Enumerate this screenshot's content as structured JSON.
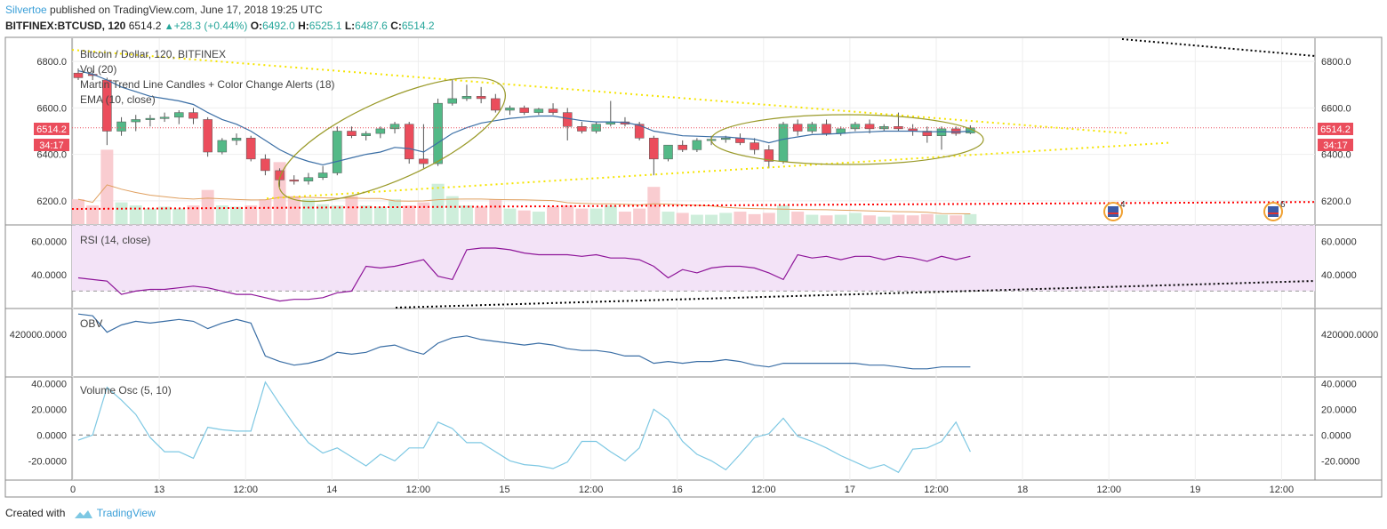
{
  "header": {
    "user": "Silvertoe",
    "published_text": " published on TradingView.com, June 17, 2018 19:25 UTC",
    "symbol": "BITFINEX:BTCUSD, 120",
    "last": "6514.2",
    "change": "+28.3 (+0.44%)",
    "o_label": "O:",
    "o": "6492.0",
    "h_label": "H:",
    "h": "6525.1",
    "l_label": "L:",
    "l": "6487.6",
    "c_label": "C:",
    "c": "6514.2"
  },
  "footer": {
    "created_with": "Created with",
    "brand": "TradingView"
  },
  "price_tag": {
    "price": "6514.2",
    "countdown": "34:17"
  },
  "legends": {
    "main_title": "Bitcoin / Dollar, 120, BITFINEX",
    "vol": "Vol (20)",
    "martin": "Martin Trend Line Candles + Color Change Alerts (18)",
    "ema": "EMA (10, close)",
    "rsi": "RSI (14, close)",
    "obv": "OBV",
    "vosc": "Volume Osc (5, 10)"
  },
  "events": [
    {
      "icon": "us-flag-event-icon",
      "count": "4",
      "x_index": 51
    },
    {
      "icon": "us-flag-event-icon",
      "count": "6",
      "x_index": 68
    }
  ],
  "colors": {
    "up": "#53b987",
    "down": "#eb4d5c",
    "ema": "#3a6ea5",
    "rsi": "#8e1599",
    "obv": "#3a6ea5",
    "vosc": "#7ec8e3",
    "trend_yellow": "#f5e400",
    "ellipse": "#9a9a2a",
    "dotted_red": "#ff0000"
  },
  "chart_data": [
    {
      "type": "candlestick",
      "title": "Bitcoin / Dollar, 120, BITFINEX",
      "x_labels": [
        "0",
        "13",
        "12:00",
        "14",
        "12:00",
        "15",
        "12:00",
        "16",
        "12:00",
        "17",
        "12:00",
        "18",
        "12:00",
        "19",
        "12:00"
      ],
      "ylim": [
        6100,
        6900
      ],
      "y_ticks": [
        "6200.0",
        "6400.0",
        "6600.0",
        "6800.0"
      ],
      "candles": [
        {
          "o": 6750,
          "h": 6770,
          "l": 6720,
          "c": 6730
        },
        {
          "o": 6745,
          "h": 6760,
          "l": 6720,
          "c": 6740
        },
        {
          "o": 6720,
          "h": 6730,
          "l": 6440,
          "c": 6500
        },
        {
          "o": 6500,
          "h": 6560,
          "l": 6480,
          "c": 6540
        },
        {
          "o": 6540,
          "h": 6570,
          "l": 6500,
          "c": 6550
        },
        {
          "o": 6550,
          "h": 6570,
          "l": 6520,
          "c": 6555
        },
        {
          "o": 6555,
          "h": 6580,
          "l": 6540,
          "c": 6560
        },
        {
          "o": 6560,
          "h": 6590,
          "l": 6530,
          "c": 6580
        },
        {
          "o": 6580,
          "h": 6600,
          "l": 6530,
          "c": 6555
        },
        {
          "o": 6550,
          "h": 6560,
          "l": 6390,
          "c": 6410
        },
        {
          "o": 6410,
          "h": 6470,
          "l": 6400,
          "c": 6460
        },
        {
          "o": 6460,
          "h": 6490,
          "l": 6440,
          "c": 6470
        },
        {
          "o": 6470,
          "h": 6480,
          "l": 6370,
          "c": 6380
        },
        {
          "o": 6380,
          "h": 6400,
          "l": 6310,
          "c": 6330
        },
        {
          "o": 6330,
          "h": 6340,
          "l": 6260,
          "c": 6290
        },
        {
          "o": 6290,
          "h": 6310,
          "l": 6270,
          "c": 6285
        },
        {
          "o": 6285,
          "h": 6320,
          "l": 6270,
          "c": 6300
        },
        {
          "o": 6300,
          "h": 6350,
          "l": 6290,
          "c": 6320
        },
        {
          "o": 6320,
          "h": 6520,
          "l": 6310,
          "c": 6500
        },
        {
          "o": 6500,
          "h": 6520,
          "l": 6470,
          "c": 6480
        },
        {
          "o": 6480,
          "h": 6500,
          "l": 6460,
          "c": 6490
        },
        {
          "o": 6490,
          "h": 6520,
          "l": 6470,
          "c": 6510
        },
        {
          "o": 6510,
          "h": 6540,
          "l": 6490,
          "c": 6530
        },
        {
          "o": 6530,
          "h": 6540,
          "l": 6360,
          "c": 6380
        },
        {
          "o": 6380,
          "h": 6530,
          "l": 6340,
          "c": 6360
        },
        {
          "o": 6360,
          "h": 6640,
          "l": 6350,
          "c": 6620
        },
        {
          "o": 6620,
          "h": 6720,
          "l": 6610,
          "c": 6640
        },
        {
          "o": 6640,
          "h": 6700,
          "l": 6630,
          "c": 6650
        },
        {
          "o": 6650,
          "h": 6690,
          "l": 6620,
          "c": 6640
        },
        {
          "o": 6640,
          "h": 6660,
          "l": 6580,
          "c": 6590
        },
        {
          "o": 6590,
          "h": 6610,
          "l": 6570,
          "c": 6600
        },
        {
          "o": 6600,
          "h": 6610,
          "l": 6570,
          "c": 6580
        },
        {
          "o": 6580,
          "h": 6600,
          "l": 6570,
          "c": 6595
        },
        {
          "o": 6595,
          "h": 6620,
          "l": 6570,
          "c": 6580
        },
        {
          "o": 6580,
          "h": 6600,
          "l": 6460,
          "c": 6520
        },
        {
          "o": 6520,
          "h": 6540,
          "l": 6490,
          "c": 6500
        },
        {
          "o": 6500,
          "h": 6540,
          "l": 6490,
          "c": 6530
        },
        {
          "o": 6530,
          "h": 6630,
          "l": 6520,
          "c": 6540
        },
        {
          "o": 6540,
          "h": 6560,
          "l": 6520,
          "c": 6530
        },
        {
          "o": 6530,
          "h": 6540,
          "l": 6460,
          "c": 6470
        },
        {
          "o": 6470,
          "h": 6480,
          "l": 6310,
          "c": 6380
        },
        {
          "o": 6380,
          "h": 6440,
          "l": 6370,
          "c": 6440
        },
        {
          "o": 6440,
          "h": 6460,
          "l": 6410,
          "c": 6420
        },
        {
          "o": 6420,
          "h": 6470,
          "l": 6410,
          "c": 6460
        },
        {
          "o": 6460,
          "h": 6480,
          "l": 6440,
          "c": 6465
        },
        {
          "o": 6465,
          "h": 6480,
          "l": 6450,
          "c": 6470
        },
        {
          "o": 6470,
          "h": 6490,
          "l": 6440,
          "c": 6450
        },
        {
          "o": 6450,
          "h": 6470,
          "l": 6400,
          "c": 6420
        },
        {
          "o": 6420,
          "h": 6440,
          "l": 6340,
          "c": 6370
        },
        {
          "o": 6370,
          "h": 6540,
          "l": 6360,
          "c": 6530
        },
        {
          "o": 6530,
          "h": 6550,
          "l": 6480,
          "c": 6500
        },
        {
          "o": 6500,
          "h": 6540,
          "l": 6490,
          "c": 6530
        },
        {
          "o": 6530,
          "h": 6550,
          "l": 6480,
          "c": 6490
        },
        {
          "o": 6490,
          "h": 6520,
          "l": 6480,
          "c": 6510
        },
        {
          "o": 6510,
          "h": 6540,
          "l": 6500,
          "c": 6530
        },
        {
          "o": 6530,
          "h": 6550,
          "l": 6490,
          "c": 6510
        },
        {
          "o": 6510,
          "h": 6530,
          "l": 6500,
          "c": 6520
        },
        {
          "o": 6520,
          "h": 6580,
          "l": 6500,
          "c": 6510
        },
        {
          "o": 6510,
          "h": 6530,
          "l": 6480,
          "c": 6500
        },
        {
          "o": 6500,
          "h": 6520,
          "l": 6450,
          "c": 6480
        },
        {
          "o": 6480,
          "h": 6520,
          "l": 6420,
          "c": 6510
        },
        {
          "o": 6510,
          "h": 6520,
          "l": 6480,
          "c": 6490
        },
        {
          "o": 6492,
          "h": 6525,
          "l": 6487,
          "c": 6514
        }
      ],
      "ema": [
        6760,
        6745,
        6720,
        6690,
        6670,
        6650,
        6640,
        6630,
        6615,
        6580,
        6550,
        6530,
        6500,
        6460,
        6420,
        6390,
        6370,
        6355,
        6370,
        6385,
        6400,
        6410,
        6430,
        6425,
        6410,
        6450,
        6490,
        6515,
        6535,
        6545,
        6555,
        6560,
        6565,
        6565,
        6555,
        6545,
        6540,
        6540,
        6538,
        6525,
        6500,
        6490,
        6480,
        6478,
        6476,
        6475,
        6470,
        6465,
        6450,
        6465,
        6475,
        6485,
        6487,
        6490,
        6495,
        6497,
        6500,
        6500,
        6500,
        6497,
        6498,
        6496,
        6500
      ],
      "volume": [
        40,
        30,
        120,
        35,
        30,
        25,
        28,
        25,
        30,
        55,
        30,
        28,
        30,
        40,
        100,
        45,
        40,
        32,
        30,
        45,
        30,
        28,
        40,
        30,
        35,
        65,
        45,
        30,
        28,
        40,
        25,
        22,
        20,
        28,
        30,
        25,
        25,
        30,
        20,
        25,
        60,
        20,
        18,
        15,
        15,
        18,
        20,
        16,
        18,
        30,
        20,
        15,
        14,
        15,
        18,
        14,
        12,
        15,
        14,
        16,
        15,
        14,
        16
      ],
      "vol_ylim": [
        0,
        300
      ]
    },
    {
      "type": "line",
      "title": "RSI (14, close)",
      "values": [
        38,
        37,
        36,
        28,
        30,
        31,
        31,
        32,
        33,
        32,
        30,
        28,
        28,
        26,
        24,
        25,
        25,
        26,
        29,
        30,
        45,
        44,
        45,
        47,
        49,
        39,
        37,
        55,
        56,
        56,
        55,
        53,
        52,
        52,
        52,
        51,
        52,
        50,
        50,
        49,
        45,
        38,
        43,
        41,
        44,
        45,
        45,
        44,
        41,
        37,
        52,
        50,
        51,
        49,
        51,
        51,
        49,
        51,
        50,
        48,
        51,
        49,
        51
      ],
      "ylim": [
        20,
        70
      ],
      "y_ticks": [
        "40.0000",
        "60.0000"
      ],
      "bands": [
        30,
        70
      ]
    },
    {
      "type": "line",
      "title": "OBV",
      "values": [
        431000,
        430000,
        421000,
        425000,
        427000,
        426000,
        427000,
        428000,
        427000,
        423000,
        426000,
        428000,
        426000,
        408000,
        405000,
        403000,
        404000,
        406000,
        410000,
        409000,
        410000,
        413000,
        414000,
        411000,
        409000,
        415000,
        418000,
        419000,
        417000,
        416000,
        415000,
        414000,
        415000,
        414000,
        412000,
        411000,
        411000,
        410000,
        408000,
        408000,
        404000,
        405000,
        404000,
        405000,
        405000,
        406000,
        405000,
        403000,
        402000,
        404000,
        404000,
        404000,
        404000,
        404000,
        404000,
        403000,
        403000,
        402000,
        401000,
        401000,
        402000,
        402000,
        402000
      ],
      "ylim": [
        397000,
        434000
      ],
      "y_ticks": [
        "420000.0000"
      ]
    },
    {
      "type": "line",
      "title": "Volume Osc (5, 10)",
      "values": [
        -4,
        0,
        37,
        27,
        16,
        -2,
        -13,
        -13,
        -18,
        6,
        4,
        3,
        3,
        41,
        24,
        8,
        -6,
        -14,
        -10,
        -17,
        -24,
        -15,
        -20,
        -10,
        -10,
        10,
        5,
        -6,
        -6,
        -13,
        -20,
        -23,
        -24,
        -26,
        -21,
        -5,
        -5,
        -13,
        -20,
        -10,
        20,
        12,
        -5,
        -15,
        -20,
        -27,
        -15,
        -2,
        1,
        13,
        -1,
        -5,
        -10,
        -16,
        -21,
        -26,
        -23,
        -29,
        -11,
        -10,
        -5,
        10,
        -13
      ],
      "ylim": [
        -35,
        45
      ],
      "y_ticks": [
        "-20.0000",
        "0.0000",
        "20.0000",
        "40.0000"
      ]
    }
  ]
}
